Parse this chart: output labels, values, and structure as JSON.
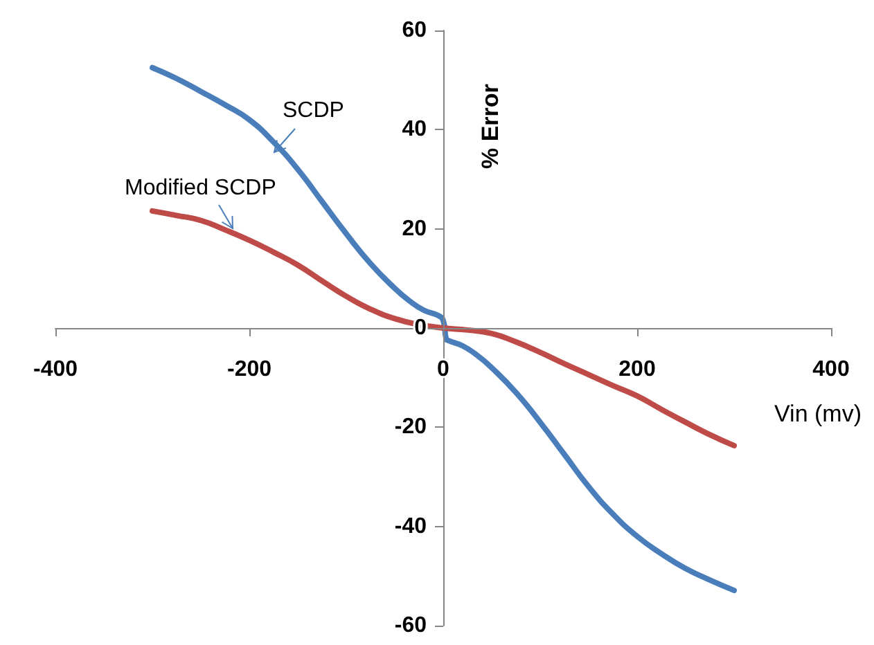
{
  "chart_data": {
    "type": "line",
    "xlabel": "Vin (mv)",
    "ylabel": "% Error",
    "xlim": [
      -400,
      400
    ],
    "xticks": [
      -400,
      -200,
      0,
      200,
      400
    ],
    "ylim": [
      -60,
      60
    ],
    "yticks": [
      -60,
      -40,
      -20,
      0,
      20,
      40,
      60
    ],
    "marker": "none",
    "line_style": "solid",
    "series": [
      {
        "color": "#4a7ebb",
        "x": [
          -300,
          -275,
          -250,
          -225,
          -200,
          -175,
          -150,
          -125,
          -100,
          -75,
          -50,
          -35,
          -20,
          -5,
          0,
          3,
          5,
          20,
          35,
          50,
          75,
          100,
          125,
          150,
          175,
          200,
          225,
          250,
          275,
          300
        ],
        "values": [
          52.5,
          50.3,
          47.7,
          45,
          42,
          37.5,
          32,
          25.5,
          19,
          13,
          8,
          5.5,
          3.6,
          2.5,
          1.5,
          -2.2,
          -2.5,
          -3.6,
          -5.5,
          -8,
          -13,
          -19,
          -25.5,
          -32,
          -37.5,
          -42,
          -45.5,
          -48.5,
          -50.8,
          -52.9
        ]
      },
      {
        "color": "#be4b48",
        "x": [
          -300,
          -275,
          -250,
          -225,
          -200,
          -175,
          -150,
          -125,
          -100,
          -75,
          -50,
          -25,
          0,
          25,
          50,
          75,
          100,
          125,
          150,
          175,
          200,
          225,
          250,
          275,
          300
        ],
        "values": [
          23.6,
          22.7,
          21.7,
          19.8,
          17.7,
          15.3,
          12.7,
          9.5,
          6.4,
          3.8,
          1.9,
          0.7,
          0,
          -0.4,
          -1.1,
          -2.8,
          -4.9,
          -7.2,
          -9.4,
          -11.6,
          -13.7,
          -16.4,
          -19,
          -21.5,
          -23.7
        ]
      }
    ],
    "annotations": [
      "SCDP",
      "Modified SCDP"
    ]
  }
}
